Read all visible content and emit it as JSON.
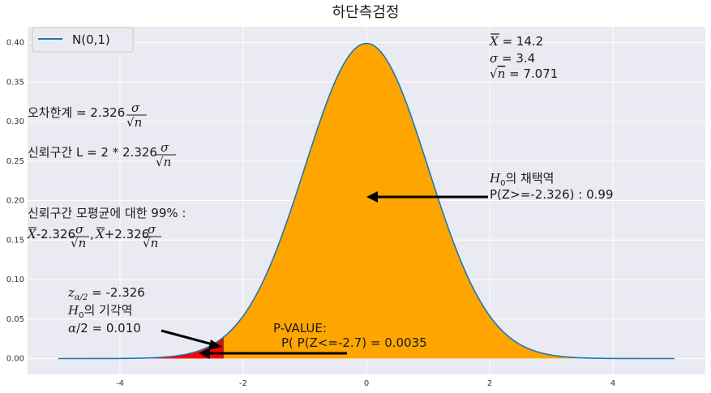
{
  "chart_data": {
    "type": "area",
    "title": "하단측검정",
    "xlabel": "",
    "ylabel": "",
    "xlim": [
      -5.5,
      5.5
    ],
    "ylim": [
      -0.02,
      0.42
    ],
    "x_ticks": [
      -4,
      -2,
      0,
      2,
      4
    ],
    "y_ticks": [
      0.0,
      0.05,
      0.1,
      0.15,
      0.2,
      0.25,
      0.3,
      0.35,
      0.4
    ],
    "x_tick_labels": [
      "-4",
      "-2",
      "0",
      "2",
      "4"
    ],
    "y_tick_labels": [
      "0.00",
      "0.05",
      "0.10",
      "0.15",
      "0.20",
      "0.25",
      "0.30",
      "0.35",
      "0.40"
    ],
    "grid": true,
    "legend_position": "top-left",
    "series": [
      {
        "name": "N(0,1)",
        "distribution": "standard normal pdf",
        "x_range": [
          -5,
          5
        ],
        "color": "#1f77b4"
      }
    ],
    "regions": [
      {
        "label": "acceptance",
        "from": -2.326,
        "to": 5,
        "color": "#ffa500"
      },
      {
        "label": "rejection",
        "from": -5,
        "to": -2.326,
        "color": "#ff0000"
      }
    ],
    "critical_value": -2.326,
    "test_statistic": -2.7,
    "annotations": {
      "stats_xbar": " = 14.2",
      "stats_sigma": " = 3.4",
      "stats_sqrtn": " = 7.071",
      "error_label": "오차한계 = 2.326",
      "ci_label": "신뢰구간 L = 2 * 2.326",
      "ci99_label": "신뢰구간 모평균에 대한 99% :",
      "ci99_minus": "-2.326",
      "ci99_plus": "+2.326",
      "accept_title": "의 채택역",
      "accept_prob": "P(Z>=-2.326) : 0.99",
      "z_half": " = -2.326",
      "reject_title": "의 기각역",
      "alpha_half": " = 0.010",
      "pvalue_title": "P-VALUE:",
      "pvalue_text": "P( P(Z<=-2.7)   = 0.0035"
    }
  }
}
